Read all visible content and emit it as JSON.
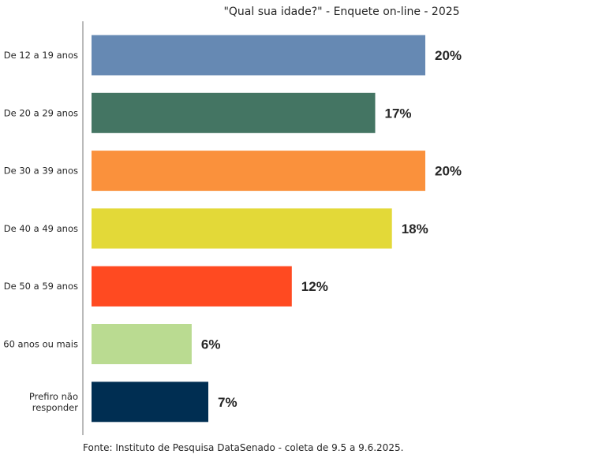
{
  "chart_data": {
    "type": "bar",
    "orientation": "horizontal",
    "title": "\"Qual sua idade?\" - Enquete on-line - 2025",
    "source": "Fonte: Instituto de Pesquisa DataSenado - coleta de 9.5 a 9.6.2025.",
    "categories": [
      [
        "De 12 a 19 anos"
      ],
      [
        "De 20 a 29 anos"
      ],
      [
        "De 30 a 39 anos"
      ],
      [
        "De 40 a 49 anos"
      ],
      [
        "De 50 a 59 anos"
      ],
      [
        "60 anos ou mais"
      ],
      [
        "Prefiro não",
        "responder"
      ]
    ],
    "values": [
      20,
      17,
      20,
      18,
      12,
      6,
      7
    ],
    "value_labels": [
      "20%",
      "17%",
      "20%",
      "18%",
      "12%",
      "6%",
      "7%"
    ],
    "colors": [
      "#6689B3",
      "#447563",
      "#FA913C",
      "#E3D938",
      "#FF4A21",
      "#BADB91",
      "#002E52"
    ],
    "xlim": [
      0,
      20
    ],
    "grid": false,
    "legend": "none"
  }
}
